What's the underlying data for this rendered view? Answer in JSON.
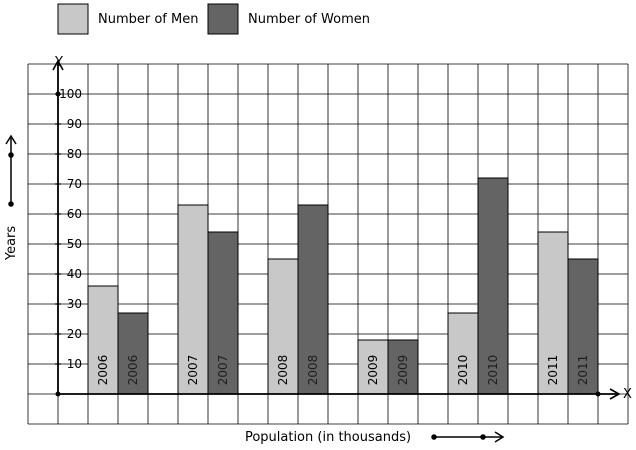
{
  "chart_data": {
    "type": "bar",
    "categories": [
      "2006",
      "2007",
      "2008",
      "2009",
      "2010",
      "2011"
    ],
    "series": [
      {
        "name": "Number of Men",
        "color": "#c8c8c8",
        "values": [
          36,
          63,
          45,
          18,
          27,
          54
        ]
      },
      {
        "name": "Number of Women",
        "color": "#646464",
        "values": [
          27,
          54,
          63,
          18,
          72,
          45
        ]
      }
    ],
    "xlabel": "Population (in thousands)",
    "ylabel": "Years",
    "x_axis_letter": "X",
    "y_axis_letter": "Y",
    "ylim": [
      0,
      100
    ],
    "y_ticks": [
      "10",
      "20",
      "30",
      "40",
      "50",
      "60",
      "70",
      "80",
      "90",
      "100"
    ],
    "grid": true,
    "legend_position": "top-left"
  }
}
